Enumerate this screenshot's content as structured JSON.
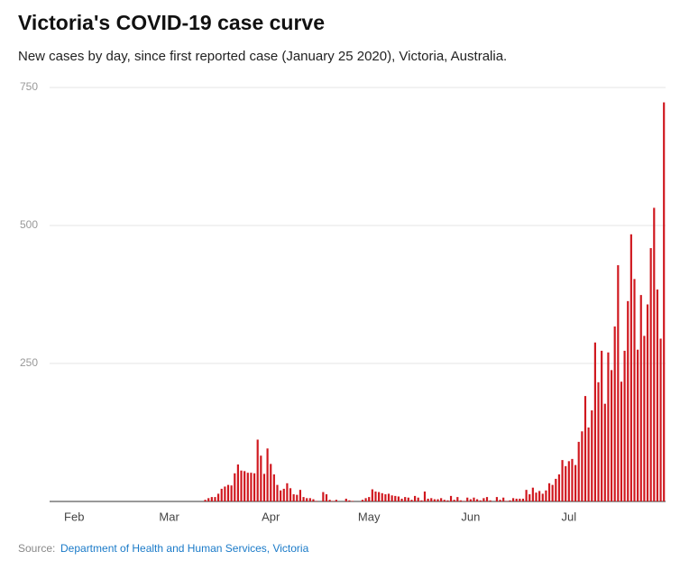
{
  "chart_data": {
    "type": "bar",
    "title": "Victoria's COVID-19 case curve",
    "subtitle": "New cases by day, since first reported case (January 25 2020), Victoria, Australia.",
    "categories": [
      null,
      null,
      null,
      null,
      null,
      null,
      null,
      "Feb",
      null,
      null,
      null,
      null,
      null,
      null,
      null,
      null,
      null,
      null,
      null,
      null,
      null,
      null,
      null,
      null,
      null,
      null,
      null,
      null,
      null,
      null,
      null,
      null,
      null,
      null,
      null,
      null,
      "Mar",
      null,
      null,
      null,
      null,
      null,
      null,
      null,
      null,
      null,
      null,
      null,
      null,
      null,
      null,
      null,
      null,
      null,
      null,
      null,
      null,
      null,
      null,
      null,
      null,
      null,
      null,
      null,
      null,
      null,
      null,
      "Apr",
      null,
      null,
      null,
      null,
      null,
      null,
      null,
      null,
      null,
      null,
      null,
      null,
      null,
      null,
      null,
      null,
      null,
      null,
      null,
      null,
      null,
      null,
      null,
      null,
      null,
      null,
      null,
      null,
      null,
      "May",
      null,
      null,
      null,
      null,
      null,
      null,
      null,
      null,
      null,
      null,
      null,
      null,
      null,
      null,
      null,
      null,
      null,
      null,
      null,
      null,
      null,
      null,
      null,
      null,
      null,
      null,
      null,
      null,
      null,
      null,
      "Jun",
      null,
      null,
      null,
      null,
      null,
      null,
      null,
      null,
      null,
      null,
      null,
      null,
      null,
      null,
      null,
      null,
      null,
      null,
      null,
      null,
      null,
      null,
      null,
      null,
      null,
      null,
      null,
      null,
      null,
      "Jul",
      null,
      null,
      null,
      null,
      null,
      null,
      null,
      null,
      null,
      null,
      null,
      null,
      null,
      null,
      null,
      null,
      null,
      null,
      null,
      null,
      null,
      null,
      null,
      null,
      null,
      null,
      null,
      null,
      null
    ],
    "values": [
      0,
      0,
      0,
      0,
      0,
      0,
      0,
      0,
      0,
      0,
      0,
      0,
      0,
      0,
      0,
      0,
      0,
      0,
      0,
      0,
      0,
      0,
      0,
      0,
      0,
      0,
      0,
      0,
      0,
      0,
      0,
      0,
      0,
      0,
      0,
      0,
      0,
      0,
      0,
      0,
      0,
      0,
      0,
      0,
      0,
      0,
      0,
      3,
      6,
      8,
      8,
      14,
      23,
      27,
      30,
      29,
      51,
      67,
      56,
      55,
      52,
      52,
      51,
      112,
      83,
      50,
      96,
      68,
      49,
      30,
      20,
      23,
      33,
      24,
      13,
      12,
      21,
      8,
      6,
      6,
      4,
      1,
      0,
      17,
      13,
      3,
      1,
      3,
      0,
      0,
      5,
      2,
      1,
      0,
      0,
      3,
      6,
      8,
      22,
      18,
      17,
      15,
      13,
      14,
      11,
      10,
      9,
      5,
      8,
      7,
      3,
      10,
      7,
      2,
      18,
      5,
      6,
      4,
      4,
      6,
      3,
      2,
      10,
      3,
      8,
      2,
      1,
      7,
      4,
      7,
      4,
      2,
      6,
      8,
      2,
      0,
      8,
      3,
      7,
      1,
      2,
      6,
      5,
      5,
      5,
      21,
      13,
      25,
      16,
      19,
      14,
      20,
      33,
      30,
      41,
      49,
      75,
      64,
      73,
      77,
      66,
      108,
      127,
      191,
      134,
      165,
      288,
      216,
      273,
      177,
      270,
      238,
      317,
      428,
      217,
      273,
      363,
      484,
      403,
      275,
      374,
      300,
      357,
      459,
      532,
      384,
      295,
      723
    ],
    "color": "#d0181f",
    "ylim": [
      0,
      750
    ],
    "yticks": [
      250,
      500,
      750
    ],
    "grid": true,
    "source_label": "Source:",
    "source": "Department of Health and Human Services, Victoria"
  }
}
